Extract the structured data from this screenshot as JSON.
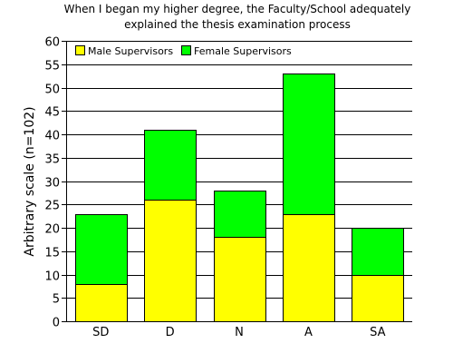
{
  "chart_data": {
    "type": "bar",
    "stacked": true,
    "title": [
      "When I began my higher degree, the Faculty/School adequately",
      "explained the thesis examination process"
    ],
    "xlabel": "",
    "ylabel": "Arbitrary scale (n=102)",
    "categories": [
      "SD",
      "D",
      "N",
      "A",
      "SA"
    ],
    "series": [
      {
        "name": "Male Supervisors",
        "values": [
          8,
          26,
          18,
          23,
          10
        ],
        "color": "#ffff00"
      },
      {
        "name": "Female Supervisors",
        "values": [
          15,
          15,
          10,
          30,
          10
        ],
        "color": "#00ff00"
      }
    ],
    "ylim": [
      0,
      60
    ],
    "yticks": [
      0,
      5,
      10,
      15,
      20,
      25,
      30,
      35,
      40,
      45,
      50,
      55,
      60
    ],
    "grid": true,
    "legend": "top-left"
  }
}
